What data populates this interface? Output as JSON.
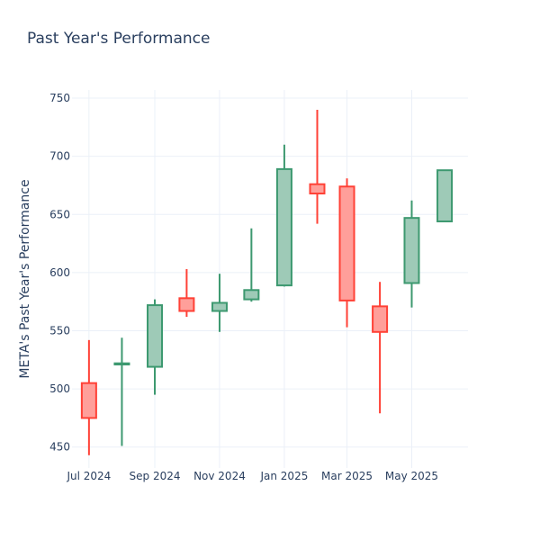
{
  "chart_data": {
    "type": "candlestick",
    "title": "Past Year's Performance",
    "xlabel": "",
    "ylabel": "META's Past Year's Performance",
    "ylim": [
      432,
      757
    ],
    "yticks": [
      450,
      500,
      550,
      600,
      650,
      700,
      750
    ],
    "xlim": [
      "2024-06-15",
      "2025-06-23"
    ],
    "xticks": [
      {
        "date": "2024-07-01",
        "label": "Jul 2024"
      },
      {
        "date": "2024-09-01",
        "label": "Sep 2024"
      },
      {
        "date": "2024-11-01",
        "label": "Nov 2024"
      },
      {
        "date": "2025-01-01",
        "label": "Jan 2025"
      },
      {
        "date": "2025-03-01",
        "label": "Mar 2025"
      },
      {
        "date": "2025-05-01",
        "label": "May 2025"
      }
    ],
    "grid": true,
    "increasing_color": "#3d9970",
    "increasing_fill": "#9ecab7",
    "decreasing_color": "#ff4136",
    "decreasing_fill": "#ff9f9a",
    "candles": [
      {
        "date": "2024-07-01",
        "open": 505,
        "high": 542,
        "low": 443,
        "close": 475
      },
      {
        "date": "2024-08-01",
        "open": 521,
        "high": 544,
        "low": 451,
        "close": 522
      },
      {
        "date": "2024-09-01",
        "open": 519,
        "high": 577,
        "low": 495,
        "close": 572
      },
      {
        "date": "2024-10-01",
        "open": 578,
        "high": 603,
        "low": 562,
        "close": 567
      },
      {
        "date": "2024-11-01",
        "open": 567,
        "high": 599,
        "low": 549,
        "close": 574
      },
      {
        "date": "2024-12-01",
        "open": 577,
        "high": 638,
        "low": 575,
        "close": 585
      },
      {
        "date": "2025-01-01",
        "open": 589,
        "high": 710,
        "low": 588,
        "close": 689
      },
      {
        "date": "2025-02-01",
        "open": 676,
        "high": 740,
        "low": 642,
        "close": 668
      },
      {
        "date": "2025-03-01",
        "open": 674,
        "high": 681,
        "low": 553,
        "close": 576
      },
      {
        "date": "2025-04-01",
        "open": 571,
        "high": 592,
        "low": 479,
        "close": 549
      },
      {
        "date": "2025-05-01",
        "open": 591,
        "high": 662,
        "low": 570,
        "close": 647
      },
      {
        "date": "2025-06-01",
        "open": 644,
        "high": 688,
        "low": 644,
        "close": 688
      }
    ]
  }
}
